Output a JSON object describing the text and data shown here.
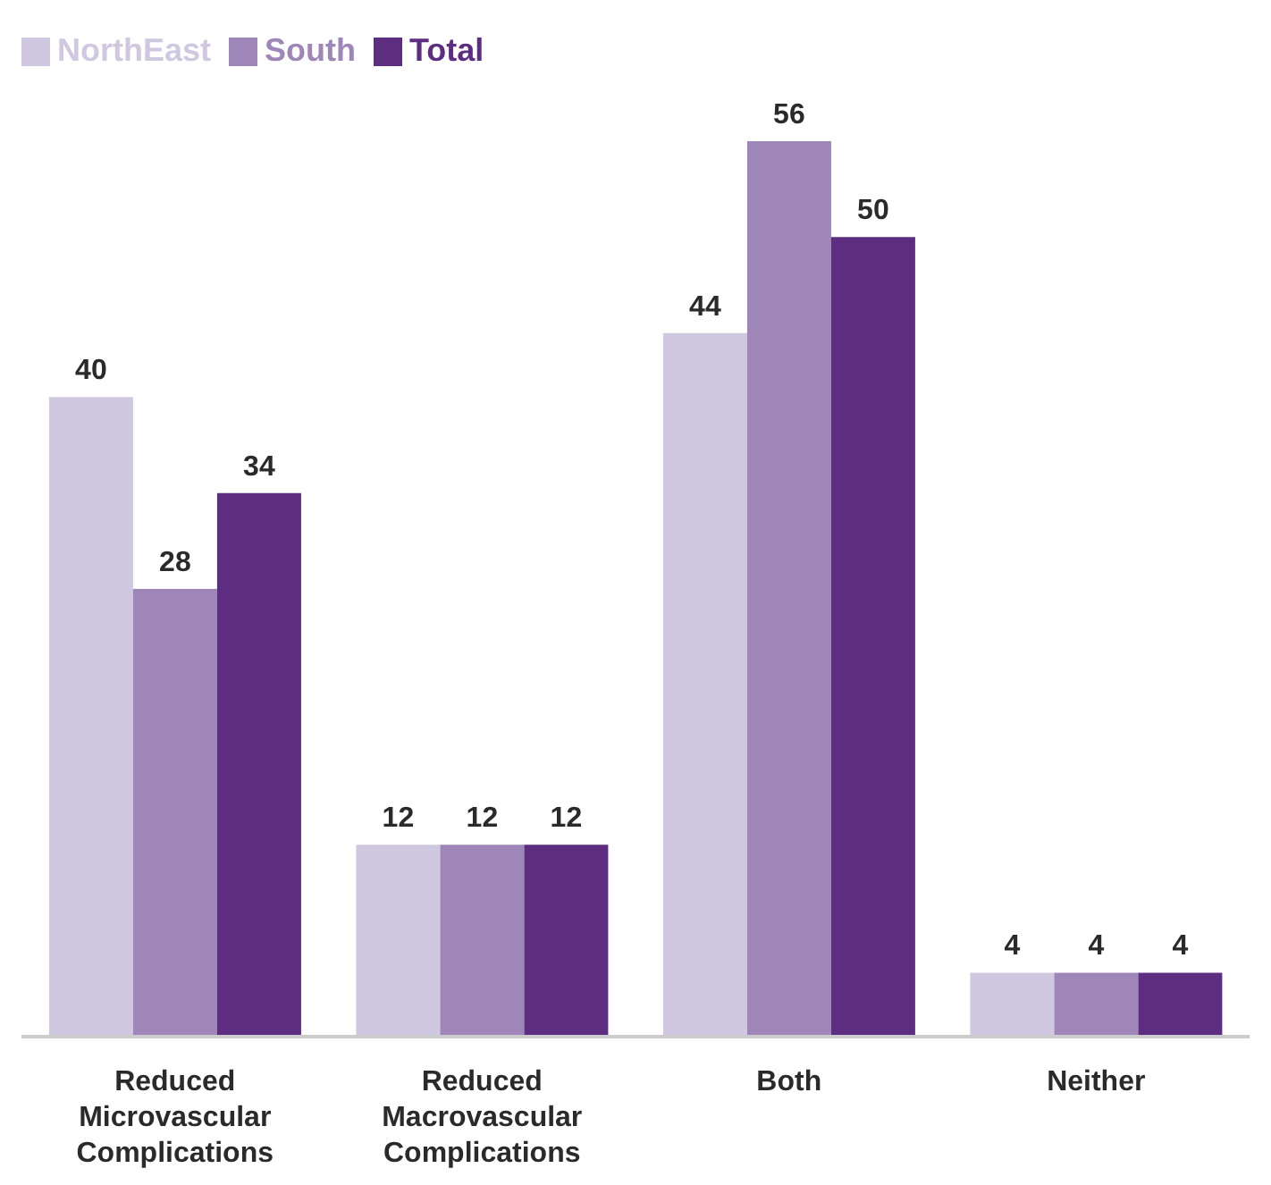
{
  "chart_data": {
    "type": "bar",
    "categories": [
      "Reduced Microvascular Complications",
      "Reduced Macrovascular Complications",
      "Both",
      "Neither"
    ],
    "series": [
      {
        "name": "NorthEast",
        "color": "#d0c8e0",
        "values": [
          40,
          12,
          44,
          4
        ]
      },
      {
        "name": "South",
        "color": "#9e87b8",
        "values": [
          28,
          12,
          56,
          4
        ]
      },
      {
        "name": "Total",
        "color": "#5c2d80",
        "values": [
          34,
          12,
          50,
          4
        ]
      }
    ],
    "data_labels": true,
    "legend": "top left"
  }
}
